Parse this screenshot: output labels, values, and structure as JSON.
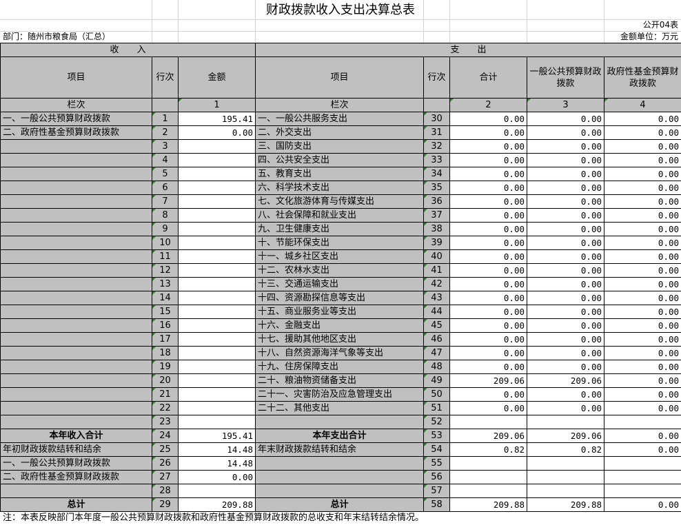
{
  "title": "财政拨款收入支出决算总表",
  "form_code": "公开04表",
  "department": "部门：随州市粮食局（汇总）",
  "unit": "金额单位：万元",
  "sections": {
    "income": "收　　入",
    "expense": "支　　出"
  },
  "headers": {
    "income_item": "项目",
    "income_line": "行次",
    "income_amount": "金额",
    "expense_item": "项目",
    "expense_line": "行次",
    "expense_total": "合计",
    "expense_general": "一般公共预算财政拨款",
    "expense_fund": "政府性基金预算财政拨款"
  },
  "column_index": {
    "label": "栏次",
    "c1": "1",
    "label2": "栏次",
    "c2": "2",
    "c3": "3",
    "c4": "4"
  },
  "rows": [
    {
      "in_item": "一、一般公共预算财政拨款",
      "in_line": "1",
      "in_amt": "195.41",
      "ex_item": "一、一般公共服务支出",
      "ex_line": "30",
      "t": "0.00",
      "g": "0.00",
      "f": "0.00"
    },
    {
      "in_item": "二、政府性基金预算财政拨款",
      "in_line": "2",
      "in_amt": "0.00",
      "ex_item": "二、外交支出",
      "ex_line": "31",
      "t": "0.00",
      "g": "0.00",
      "f": "0.00"
    },
    {
      "in_item": "",
      "in_line": "3",
      "in_amt": "",
      "ex_item": "三、国防支出",
      "ex_line": "32",
      "t": "0.00",
      "g": "0.00",
      "f": "0.00"
    },
    {
      "in_item": "",
      "in_line": "4",
      "in_amt": "",
      "ex_item": "四、公共安全支出",
      "ex_line": "33",
      "t": "0.00",
      "g": "0.00",
      "f": "0.00"
    },
    {
      "in_item": "",
      "in_line": "5",
      "in_amt": "",
      "ex_item": "五、教育支出",
      "ex_line": "34",
      "t": "0.00",
      "g": "0.00",
      "f": "0.00"
    },
    {
      "in_item": "",
      "in_line": "6",
      "in_amt": "",
      "ex_item": "六、科学技术支出",
      "ex_line": "35",
      "t": "0.00",
      "g": "0.00",
      "f": "0.00"
    },
    {
      "in_item": "",
      "in_line": "7",
      "in_amt": "",
      "ex_item": "七、文化旅游体育与传媒支出",
      "ex_line": "36",
      "t": "0.00",
      "g": "0.00",
      "f": "0.00"
    },
    {
      "in_item": "",
      "in_line": "8",
      "in_amt": "",
      "ex_item": "八、社会保障和就业支出",
      "ex_line": "37",
      "t": "0.00",
      "g": "0.00",
      "f": "0.00"
    },
    {
      "in_item": "",
      "in_line": "9",
      "in_amt": "",
      "ex_item": "九、卫生健康支出",
      "ex_line": "38",
      "t": "0.00",
      "g": "0.00",
      "f": "0.00"
    },
    {
      "in_item": "",
      "in_line": "10",
      "in_amt": "",
      "ex_item": "十、节能环保支出",
      "ex_line": "39",
      "t": "0.00",
      "g": "0.00",
      "f": "0.00"
    },
    {
      "in_item": "",
      "in_line": "11",
      "in_amt": "",
      "ex_item": "十一、城乡社区支出",
      "ex_line": "40",
      "t": "0.00",
      "g": "0.00",
      "f": "0.00"
    },
    {
      "in_item": "",
      "in_line": "12",
      "in_amt": "",
      "ex_item": "十二、农林水支出",
      "ex_line": "41",
      "t": "0.00",
      "g": "0.00",
      "f": "0.00"
    },
    {
      "in_item": "",
      "in_line": "13",
      "in_amt": "",
      "ex_item": "十三、交通运输支出",
      "ex_line": "42",
      "t": "0.00",
      "g": "0.00",
      "f": "0.00"
    },
    {
      "in_item": "",
      "in_line": "14",
      "in_amt": "",
      "ex_item": "十四、资源勘探信息等支出",
      "ex_line": "43",
      "t": "0.00",
      "g": "0.00",
      "f": "0.00"
    },
    {
      "in_item": "",
      "in_line": "15",
      "in_amt": "",
      "ex_item": "十五、商业服务业等支出",
      "ex_line": "44",
      "t": "0.00",
      "g": "0.00",
      "f": "0.00"
    },
    {
      "in_item": "",
      "in_line": "16",
      "in_amt": "",
      "ex_item": "十六、金融支出",
      "ex_line": "45",
      "t": "0.00",
      "g": "0.00",
      "f": "0.00"
    },
    {
      "in_item": "",
      "in_line": "17",
      "in_amt": "",
      "ex_item": "十七、援助其他地区支出",
      "ex_line": "46",
      "t": "0.00",
      "g": "0.00",
      "f": "0.00"
    },
    {
      "in_item": "",
      "in_line": "18",
      "in_amt": "",
      "ex_item": "十八、自然资源海洋气象等支出",
      "ex_line": "47",
      "t": "0.00",
      "g": "0.00",
      "f": "0.00"
    },
    {
      "in_item": "",
      "in_line": "19",
      "in_amt": "",
      "ex_item": "十九、住房保障支出",
      "ex_line": "48",
      "t": "0.00",
      "g": "0.00",
      "f": "0.00"
    },
    {
      "in_item": "",
      "in_line": "20",
      "in_amt": "",
      "ex_item": "二十、粮油物资储备支出",
      "ex_line": "49",
      "t": "209.06",
      "g": "209.06",
      "f": "0.00"
    },
    {
      "in_item": "",
      "in_line": "21",
      "in_amt": "",
      "ex_item": "二十一、灾害防治及应急管理支出",
      "ex_line": "50",
      "t": "0.00",
      "g": "0.00",
      "f": "0.00"
    },
    {
      "in_item": "",
      "in_line": "22",
      "in_amt": "",
      "ex_item": "二十二、其他支出",
      "ex_line": "51",
      "t": "0.00",
      "g": "0.00",
      "f": "0.00"
    },
    {
      "in_item": "",
      "in_line": "23",
      "in_amt": "",
      "ex_item": "",
      "ex_line": "52",
      "t": "",
      "g": "",
      "f": ""
    },
    {
      "in_item": "本年收入合计",
      "in_line": "24",
      "in_amt": "195.41",
      "ex_item": "本年支出合计",
      "ex_line": "53",
      "t": "209.06",
      "g": "209.06",
      "f": "0.00",
      "bold": true
    },
    {
      "in_item": "年初财政拨款结转和结余",
      "in_line": "25",
      "in_amt": "14.48",
      "ex_item": "年末财政拨款结转和结余",
      "ex_line": "54",
      "t": "0.82",
      "g": "0.82",
      "f": "0.00"
    },
    {
      "in_item": "一、一般公共预算财政拨款",
      "in_line": "26",
      "in_amt": "14.48",
      "ex_item": "",
      "ex_line": "55",
      "t": "",
      "g": "",
      "f": ""
    },
    {
      "in_item": "二、政府性基金预算财政拨款",
      "in_line": "27",
      "in_amt": "0.00",
      "ex_item": "",
      "ex_line": "56",
      "t": "",
      "g": "",
      "f": ""
    },
    {
      "in_item": "",
      "in_line": "28",
      "in_amt": "",
      "ex_item": "",
      "ex_line": "57",
      "t": "",
      "g": "",
      "f": ""
    },
    {
      "in_item": "总计",
      "in_line": "29",
      "in_amt": "209.88",
      "ex_item": "总计",
      "ex_line": "58",
      "t": "209.88",
      "g": "209.88",
      "f": "0.00",
      "bold": true
    }
  ],
  "note": "注：本表反映部门本年度一般公共预算财政拨款和政府性基金预算财政拨款的总收支和年末结转结余情况。",
  "colors": {
    "header_gray": "#c0c0c0",
    "text_marker_green": "#1a8a1a",
    "gridline": "#d4d4d4"
  }
}
